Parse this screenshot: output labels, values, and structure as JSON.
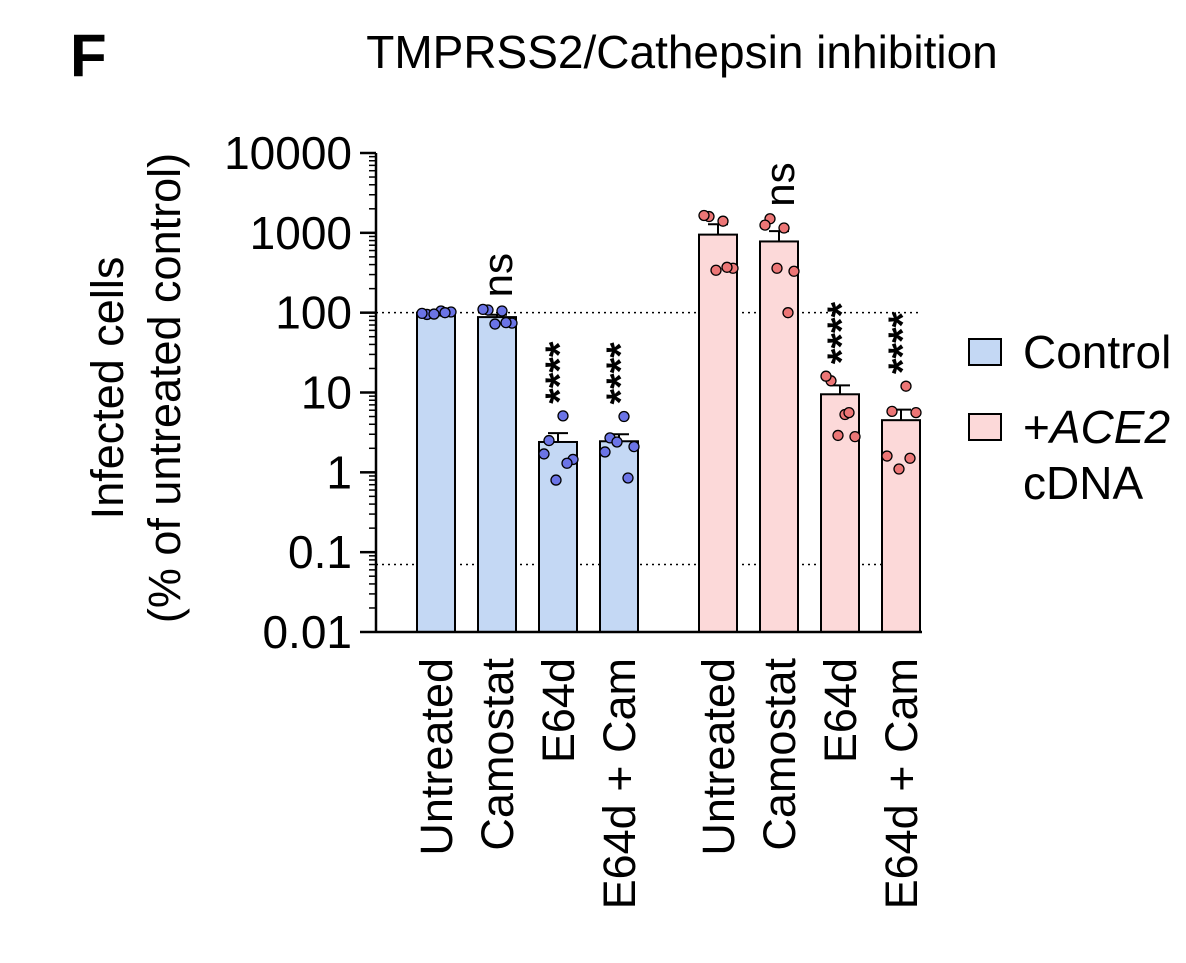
{
  "panel_letter": "F",
  "chart_data": {
    "type": "bar",
    "title": "TMPRSS2/Cathepsin inhibition",
    "ylabel_line1": "Infected cells",
    "ylabel_line2": "(% of untreated control)",
    "xlabel": "",
    "yscale": "log",
    "ylim": [
      0.01,
      10000
    ],
    "yticks": [
      {
        "value": 10000,
        "label": "10000"
      },
      {
        "value": 1000,
        "label": "1000"
      },
      {
        "value": 100,
        "label": "100"
      },
      {
        "value": 10,
        "label": "10"
      },
      {
        "value": 1,
        "label": "1"
      },
      {
        "value": 0.1,
        "label": "0.1"
      },
      {
        "value": 0.01,
        "label": "0.01"
      }
    ],
    "reference_lines": [
      100,
      0.07
    ],
    "grid": false,
    "legend_position": "right",
    "legend": [
      {
        "prefix": "",
        "italic": "",
        "text": "Control",
        "line2": "",
        "color": "#c4d8f4"
      },
      {
        "prefix": "+",
        "italic": "ACE2",
        "text": "",
        "line2": "cDNA",
        "color": "#fcd9d9"
      }
    ],
    "groups": [
      {
        "name": "Control",
        "bar_color": "#c4d8f4",
        "point_color": "#6b74e6",
        "bars": [
          {
            "category": "Untreated",
            "mean": 100,
            "sem": 3,
            "significance": "",
            "points": [
              95,
              105,
              98,
              102,
              96,
              100
            ]
          },
          {
            "category": "Camostat",
            "mean": 88,
            "sem": 6,
            "significance": "ns",
            "points": [
              108,
              105,
              110,
              74,
              72,
              75
            ]
          },
          {
            "category": "E64d",
            "mean": 2.4,
            "sem": 0.7,
            "significance": "****",
            "points": [
              2.5,
              5.1,
              1.7,
              1.45,
              0.8,
              1.3
            ]
          },
          {
            "category": "E64d + Cam",
            "mean": 2.45,
            "sem": 0.55,
            "significance": "****",
            "points": [
              2.7,
              5.0,
              1.8,
              2.1,
              2.4,
              0.85
            ]
          }
        ]
      },
      {
        "name": "+ACE2 cDNA",
        "bar_color": "#fcd9d9",
        "point_color": "#ec7676",
        "bars": [
          {
            "category": "Untreated",
            "mean": 950,
            "sem": 330,
            "significance": "",
            "points": [
              1600,
              1400,
              1650,
              360,
              340,
              370
            ]
          },
          {
            "category": "Camostat",
            "mean": 780,
            "sem": 270,
            "significance": "ns",
            "points": [
              1500,
              1150,
              1250,
              330,
              360,
              100
            ]
          },
          {
            "category": "E64d",
            "mean": 9.5,
            "sem": 2.8,
            "significance": "****",
            "points": [
              14,
              5.3,
              16,
              2.8,
              2.9,
              5.6
            ]
          },
          {
            "category": "E64d + Cam",
            "mean": 4.5,
            "sem": 1.6,
            "significance": "****",
            "points": [
              5.8,
              12,
              1.6,
              5.6,
              1.1,
              1.5
            ]
          }
        ]
      }
    ]
  }
}
